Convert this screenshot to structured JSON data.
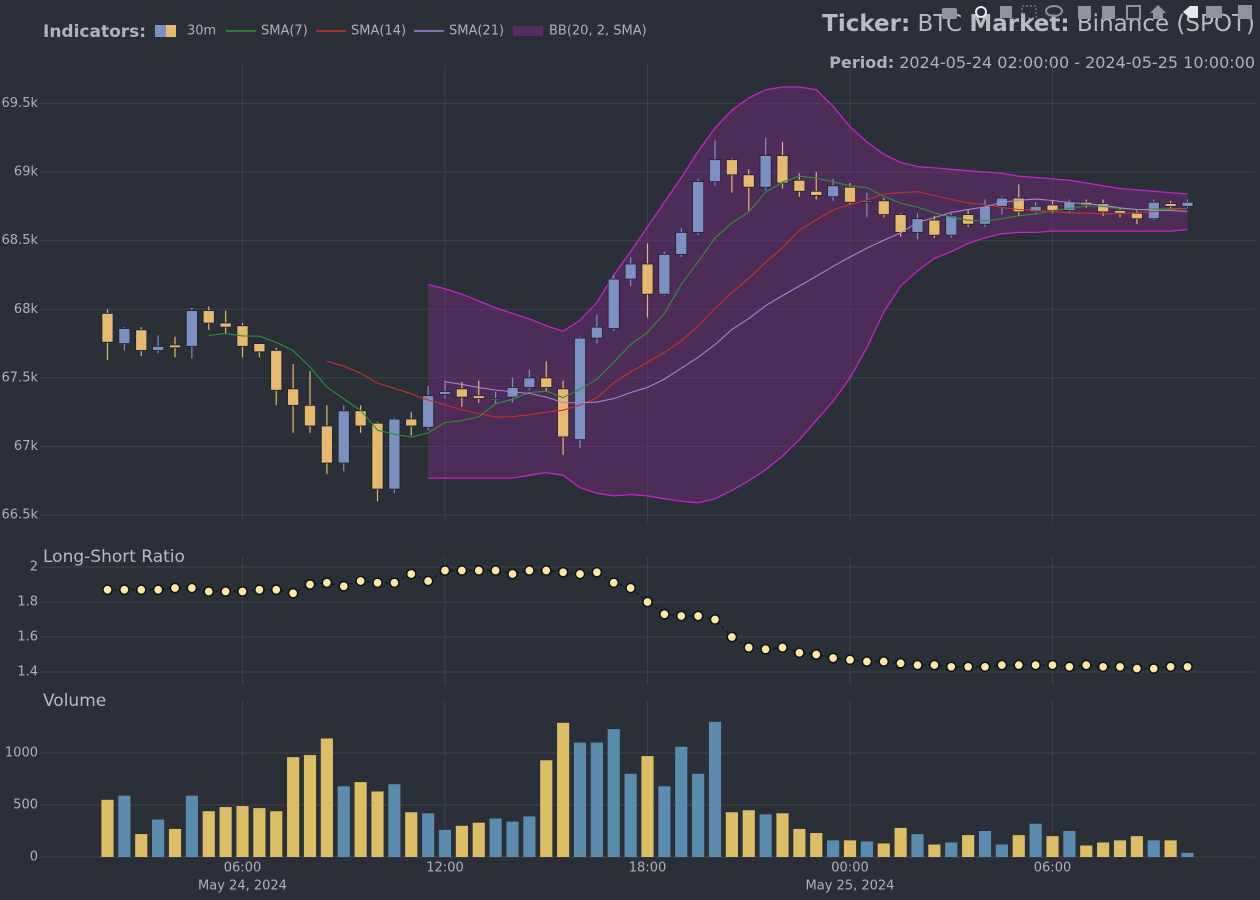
{
  "header": {
    "legend_title": "Indicators:",
    "ticker_label": "Ticker:",
    "ticker": "BTC",
    "market_label": "Market:",
    "market": "Binance (SPOT)",
    "period_label": "Period:",
    "period": "2024-05-24 02:00:00 - 2024-05-25 10:00:00"
  },
  "chart_data": [
    {
      "type": "candlestick",
      "name": "30m",
      "increasing_color": "#7d90c2",
      "decreasing_color": "#e6b872",
      "x": [
        "2024-05-24 02:00",
        "2024-05-24 02:30",
        "2024-05-24 03:00",
        "2024-05-24 03:30",
        "2024-05-24 04:00",
        "2024-05-24 04:30",
        "2024-05-24 05:00",
        "2024-05-24 05:30",
        "2024-05-24 06:00",
        "2024-05-24 06:30",
        "2024-05-24 07:00",
        "2024-05-24 07:30",
        "2024-05-24 08:00",
        "2024-05-24 08:30",
        "2024-05-24 09:00",
        "2024-05-24 09:30",
        "2024-05-24 10:00",
        "2024-05-24 10:30",
        "2024-05-24 11:00",
        "2024-05-24 11:30",
        "2024-05-24 12:00",
        "2024-05-24 12:30",
        "2024-05-24 13:00",
        "2024-05-24 13:30",
        "2024-05-24 14:00",
        "2024-05-24 14:30",
        "2024-05-24 15:00",
        "2024-05-24 15:30",
        "2024-05-24 16:00",
        "2024-05-24 16:30",
        "2024-05-24 17:00",
        "2024-05-24 17:30",
        "2024-05-24 18:00",
        "2024-05-24 18:30",
        "2024-05-24 19:00",
        "2024-05-24 19:30",
        "2024-05-24 20:00",
        "2024-05-24 20:30",
        "2024-05-24 21:00",
        "2024-05-24 21:30",
        "2024-05-24 22:00",
        "2024-05-24 22:30",
        "2024-05-24 23:00",
        "2024-05-24 23:30",
        "2024-05-25 00:00",
        "2024-05-25 00:30",
        "2024-05-25 01:00",
        "2024-05-25 01:30",
        "2024-05-25 02:00",
        "2024-05-25 02:30",
        "2024-05-25 03:00",
        "2024-05-25 03:30",
        "2024-05-25 04:00",
        "2024-05-25 04:30",
        "2024-05-25 05:00",
        "2024-05-25 05:30",
        "2024-05-25 06:00",
        "2024-05-25 06:30",
        "2024-05-25 07:00",
        "2024-05-25 07:30",
        "2024-05-25 08:00",
        "2024-05-25 08:30",
        "2024-05-25 09:00",
        "2024-05-25 09:30",
        "2024-05-25 10:00"
      ],
      "open": [
        67970,
        67750,
        67850,
        67700,
        67740,
        67730,
        67990,
        67900,
        67880,
        67750,
        67700,
        67420,
        67300,
        67150,
        66880,
        67260,
        67170,
        66690,
        67200,
        67140,
        67380,
        67420,
        67370,
        67340,
        67360,
        67430,
        67500,
        67420,
        67050,
        67790,
        67860,
        68220,
        68330,
        68110,
        68400,
        68560,
        68930,
        69090,
        68980,
        68890,
        69120,
        68940,
        68860,
        68820,
        68890,
        68780,
        68790,
        68690,
        68560,
        68650,
        68540,
        68690,
        68620,
        68750,
        68810,
        68710,
        68760,
        68720,
        68780,
        68770,
        68720,
        68700,
        68660,
        68770,
        68750
      ],
      "high": [
        68000,
        67870,
        67870,
        67810,
        67800,
        68010,
        68020,
        67990,
        67900,
        67750,
        67720,
        67600,
        67550,
        67300,
        67300,
        67300,
        67180,
        67210,
        67250,
        67440,
        67480,
        67470,
        67480,
        67400,
        67500,
        67560,
        67620,
        67480,
        67800,
        67960,
        68250,
        68380,
        68480,
        68420,
        68590,
        68950,
        69230,
        69100,
        69020,
        69250,
        69220,
        68990,
        69000,
        68950,
        68920,
        68850,
        68810,
        68700,
        68700,
        68680,
        68700,
        68730,
        68800,
        68820,
        68910,
        68780,
        68790,
        68800,
        68800,
        68800,
        68740,
        68720,
        68800,
        68790,
        68800
      ],
      "low": [
        67630,
        67700,
        67660,
        67680,
        67650,
        67640,
        67850,
        67820,
        67650,
        67650,
        67300,
        67100,
        67100,
        66800,
        66820,
        67100,
        66600,
        66660,
        67080,
        67120,
        67350,
        67290,
        67320,
        67310,
        67320,
        67410,
        67400,
        66940,
        66990,
        67750,
        67840,
        68170,
        67940,
        68100,
        68380,
        68540,
        68900,
        68850,
        68720,
        68870,
        68880,
        68820,
        68800,
        68790,
        68760,
        68670,
        68670,
        68530,
        68510,
        68520,
        68520,
        68600,
        68600,
        68690,
        68680,
        68690,
        68700,
        68700,
        68740,
        68680,
        68670,
        68620,
        68650,
        68730,
        68740
      ],
      "close": [
        67760,
        67860,
        67700,
        67730,
        67720,
        67990,
        67900,
        67870,
        67730,
        67690,
        67410,
        67300,
        67150,
        66880,
        67260,
        67150,
        66690,
        67200,
        67150,
        67370,
        67400,
        67360,
        67350,
        67350,
        67430,
        67500,
        67430,
        67070,
        67790,
        67870,
        68220,
        68330,
        68110,
        68400,
        68560,
        68930,
        69090,
        68980,
        68890,
        69120,
        68920,
        68860,
        68830,
        68900,
        68780,
        68790,
        68690,
        68560,
        68660,
        68540,
        68680,
        68620,
        68750,
        68810,
        68710,
        68750,
        68720,
        68780,
        68760,
        68710,
        68700,
        68660,
        68780,
        68750,
        68780
      ],
      "series": [
        {
          "name": "SMA(7)",
          "color": "#2f8f3c",
          "values": [
            null,
            null,
            null,
            null,
            null,
            null,
            67809,
            67824,
            67806,
            67804,
            67759,
            67699,
            67579,
            67433,
            67346,
            67263,
            67120,
            67090,
            67069,
            67100,
            67174,
            67189,
            67217,
            67311,
            67344,
            67394,
            67403,
            67356,
            67417,
            67491,
            67616,
            67744,
            67831,
            67970,
            68183,
            68346,
            68520,
            68629,
            68709,
            68853,
            68927,
            68970,
            68956,
            68929,
            68900,
            68886,
            68824,
            68773,
            68744,
            68703,
            68671,
            68649,
            68643,
            68660,
            68681,
            68694,
            68720,
            68734,
            68754,
            68749,
            68733,
            68726,
            68730,
            68734,
            68734
          ]
        },
        {
          "name": "SMA(14)",
          "color": "#c8322c",
          "values": [
            null,
            null,
            null,
            null,
            null,
            null,
            null,
            null,
            null,
            null,
            null,
            null,
            null,
            67621,
            67585,
            67534,
            67462,
            67424,
            67384,
            67339,
            67304,
            67267,
            67240,
            67216,
            67217,
            67231,
            67251,
            67265,
            67303,
            67354,
            67464,
            67544,
            67613,
            67686,
            67769,
            67881,
            68006,
            68122,
            68226,
            68342,
            68449,
            68576,
            68651,
            68724,
            68764,
            68797,
            68839,
            68850,
            68857,
            68829,
            68800,
            68774,
            68764,
            68742,
            68727,
            68719,
            68711,
            68703,
            68701,
            68696,
            68696,
            68704,
            68712,
            68727,
            68734
          ]
        },
        {
          "name": "SMA(21)",
          "color": "#a184d8",
          "values": [
            null,
            null,
            null,
            null,
            null,
            null,
            null,
            null,
            null,
            null,
            null,
            null,
            null,
            null,
            null,
            null,
            null,
            null,
            null,
            null,
            67472,
            67453,
            67429,
            67412,
            67398,
            67387,
            67360,
            67321,
            67317,
            67324,
            67349,
            67393,
            67431,
            67491,
            67571,
            67650,
            67743,
            67852,
            67932,
            68026,
            68100,
            68170,
            68240,
            68313,
            68381,
            68446,
            68503,
            68557,
            68632,
            68668,
            68707,
            68726,
            68746,
            68779,
            68794,
            68803,
            68793,
            68778,
            68768,
            68759,
            68739,
            68727,
            68723,
            68719,
            68713
          ]
        }
      ],
      "band": {
        "name": "BB(20, 2, SMA)",
        "color": "#c524cc",
        "fill": "#7a2a80",
        "upper": [
          null,
          null,
          null,
          null,
          null,
          null,
          null,
          null,
          null,
          null,
          null,
          null,
          null,
          null,
          null,
          null,
          null,
          null,
          null,
          68180,
          68150,
          68110,
          68060,
          68010,
          67970,
          67930,
          67880,
          67840,
          67920,
          68050,
          68250,
          68420,
          68600,
          68780,
          68960,
          69150,
          69320,
          69450,
          69540,
          69600,
          69620,
          69620,
          69600,
          69480,
          69330,
          69220,
          69130,
          69070,
          69040,
          69030,
          69020,
          69010,
          69000,
          68990,
          68970,
          68960,
          68950,
          68940,
          68920,
          68900,
          68880,
          68870,
          68860,
          68850,
          68840
        ],
        "lower": [
          null,
          null,
          null,
          null,
          null,
          null,
          null,
          null,
          null,
          null,
          null,
          null,
          null,
          null,
          null,
          null,
          null,
          null,
          null,
          66770,
          66770,
          66770,
          66770,
          66770,
          66770,
          66790,
          66810,
          66790,
          66700,
          66660,
          66640,
          66650,
          66640,
          66620,
          66600,
          66590,
          66620,
          66680,
          66750,
          66830,
          66930,
          67050,
          67190,
          67330,
          67500,
          67720,
          67980,
          68170,
          68280,
          68370,
          68420,
          68480,
          68520,
          68550,
          68560,
          68560,
          68570,
          68570,
          68570,
          68570,
          68570,
          68570,
          68570,
          68570,
          68580
        ]
      },
      "xlim": [
        "2024-05-24 00:00",
        "2024-05-25 12:00"
      ],
      "xticks": [
        {
          "value": "2024-05-24 06:00",
          "label": "06:00"
        },
        {
          "value": "2024-05-24 12:00",
          "label": "12:00"
        },
        {
          "value": "2024-05-24 18:00",
          "label": "18:00"
        },
        {
          "value": "2024-05-25 00:00",
          "label": "00:00"
        },
        {
          "value": "2024-05-25 06:00",
          "label": "06:00"
        }
      ],
      "x_date_labels": [
        {
          "value": "2024-05-24 06:00",
          "label": "May 24, 2024"
        },
        {
          "value": "2024-05-25 00:00",
          "label": "May 25, 2024"
        }
      ],
      "ylim": [
        66450,
        69780
      ],
      "yticks": [
        {
          "value": 66500,
          "label": "66.5k"
        },
        {
          "value": 67000,
          "label": "67k"
        },
        {
          "value": 67500,
          "label": "67.5k"
        },
        {
          "value": 68000,
          "label": "68k"
        },
        {
          "value": 68500,
          "label": "68.5k"
        },
        {
          "value": 69000,
          "label": "69k"
        },
        {
          "value": 69500,
          "label": "69.5k"
        }
      ],
      "grid": true
    },
    {
      "type": "line",
      "title": "Long-Short Ratio",
      "color": "#fbe6a6",
      "values": [
        1.87,
        1.87,
        1.87,
        1.87,
        1.88,
        1.88,
        1.86,
        1.86,
        1.86,
        1.87,
        1.87,
        1.85,
        1.9,
        1.91,
        1.89,
        1.92,
        1.91,
        1.91,
        1.96,
        1.92,
        1.98,
        1.98,
        1.98,
        1.98,
        1.96,
        1.98,
        1.98,
        1.97,
        1.96,
        1.97,
        1.91,
        1.88,
        1.8,
        1.73,
        1.72,
        1.72,
        1.7,
        1.6,
        1.54,
        1.53,
        1.54,
        1.51,
        1.5,
        1.48,
        1.47,
        1.46,
        1.46,
        1.45,
        1.44,
        1.44,
        1.43,
        1.43,
        1.43,
        1.44,
        1.44,
        1.44,
        1.44,
        1.43,
        1.44,
        1.43,
        1.43,
        1.42,
        1.42,
        1.43,
        1.43
      ],
      "ylim": [
        1.326,
        2.057
      ],
      "yticks": [
        1.4,
        1.6,
        1.8,
        2
      ],
      "grid": true
    },
    {
      "type": "bar",
      "title": "Volume",
      "increasing_color": "#5b8cae",
      "decreasing_color": "#ddbd67",
      "values": [
        550,
        590,
        220,
        360,
        270,
        590,
        440,
        480,
        490,
        470,
        440,
        960,
        980,
        1140,
        680,
        720,
        630,
        700,
        430,
        420,
        260,
        300,
        330,
        370,
        340,
        390,
        930,
        1290,
        1100,
        1100,
        1230,
        800,
        970,
        680,
        1060,
        800,
        1300,
        430,
        450,
        410,
        420,
        270,
        230,
        160,
        160,
        150,
        130,
        280,
        220,
        120,
        140,
        210,
        250,
        120,
        210,
        320,
        200,
        250,
        110,
        140,
        160,
        200,
        160,
        160,
        40
      ],
      "ylim": [
        0,
        1500
      ],
      "yticks": [
        0,
        500,
        1000
      ],
      "grid": true
    }
  ]
}
